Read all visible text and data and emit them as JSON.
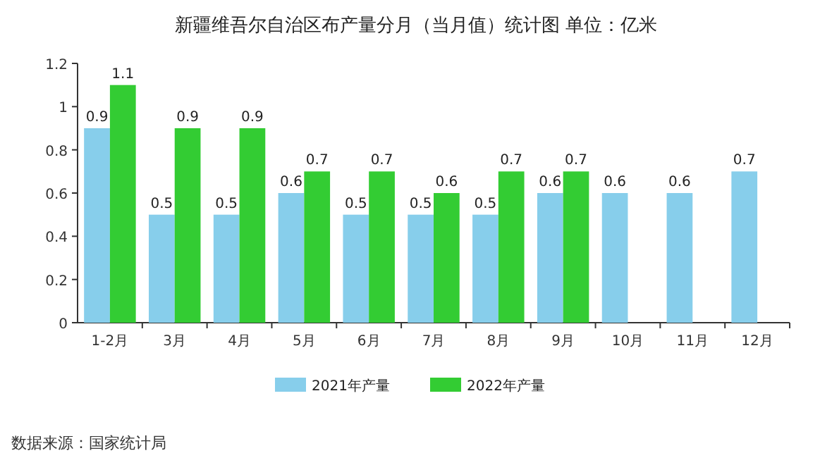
{
  "chart_data": {
    "type": "bar",
    "title": "新疆维吾尔自治区布产量分月（当月值）统计图 单位：亿米",
    "categories": [
      "1-2月",
      "3月",
      "4月",
      "5月",
      "6月",
      "7月",
      "8月",
      "9月",
      "10月",
      "11月",
      "12月"
    ],
    "series": [
      {
        "name": "2021年产量",
        "color": "#87ceeb",
        "values": [
          0.9,
          0.5,
          0.5,
          0.6,
          0.5,
          0.5,
          0.5,
          0.6,
          0.6,
          0.6,
          0.7
        ]
      },
      {
        "name": "2022年产量",
        "color": "#33cc33",
        "values": [
          1.1,
          0.9,
          0.9,
          0.7,
          0.7,
          0.6,
          0.7,
          0.7,
          null,
          null,
          null
        ]
      }
    ],
    "ylim": [
      0,
      1.2
    ],
    "yticks": [
      0,
      0.2,
      0.4,
      0.6,
      0.8,
      1,
      1.2
    ],
    "data_labels": true,
    "legend": "bottom",
    "annotations": [
      "数据来源：国家统计局"
    ]
  }
}
